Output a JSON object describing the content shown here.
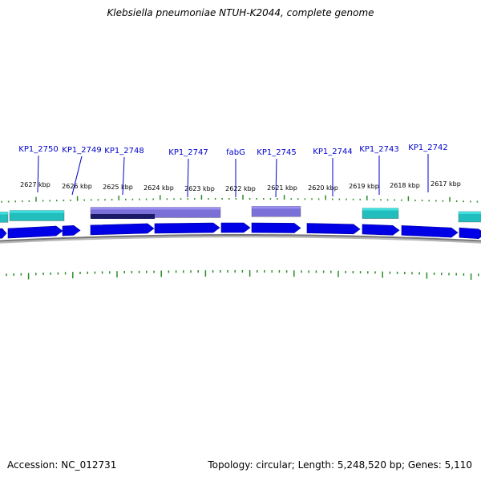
{
  "title": "Klebsiella pneumoniae NTUH-K2044, complete genome",
  "footer": {
    "accession": "Accession: NC_012731",
    "stats": "Topology: circular; Length: 5,248,520 bp; Genes: 5,110"
  },
  "colors": {
    "cds": "#0000e6",
    "cds_light": "#2222ff",
    "teal": "#22bdbd",
    "teal_light": "#40e0e0",
    "lavender": "#7b6fd8",
    "navy": "#1a1a66",
    "tick": "#2a8c2a",
    "backbone": "#777777",
    "label": "#0000cc"
  },
  "tick_labels": [
    "2627 kbp",
    "2626 kbp",
    "2625 kbp",
    "2624 kbp",
    "2623 kbp",
    "2622 kbp",
    "2621 kbp",
    "2620 kbp",
    "2619 kbp",
    "2618 kbp",
    "2617 kbp"
  ],
  "gene_labels": [
    "KP1_2750",
    "KP1_2749",
    "KP1_2748",
    "KP1_2747",
    "fabG",
    "KP1_2745",
    "KP1_2744",
    "KP1_2743",
    "KP1_2742"
  ]
}
